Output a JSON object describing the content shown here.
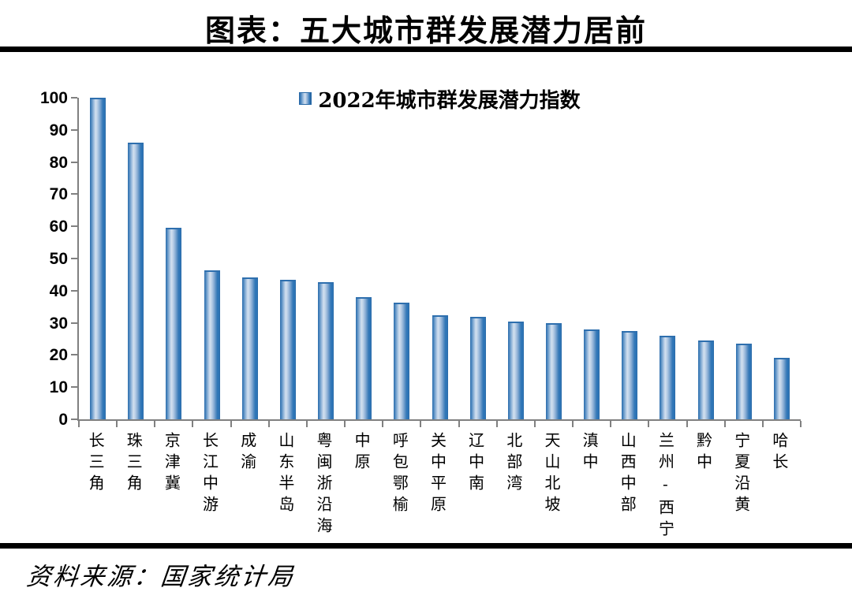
{
  "header": {
    "title": "图表：五大城市群发展潜力居前"
  },
  "footer": {
    "source": "资料来源：国家统计局"
  },
  "chart_data": {
    "type": "bar",
    "title": "图表：五大城市群发展潜力居前",
    "legend": "2022年城市群发展潜力指数",
    "legend_position": "top-center",
    "categories": [
      "长三角",
      "珠三角",
      "京津冀",
      "长江中游",
      "成渝",
      "山东半岛",
      "粤闽浙沿海",
      "中原",
      "呼包鄂榆",
      "关中平原",
      "辽中南",
      "北部湾",
      "天山北坡",
      "滇中",
      "山西中部",
      "兰州-西宁",
      "黔中",
      "宁夏沿黄",
      "哈长"
    ],
    "values": [
      100,
      86,
      59.5,
      46.3,
      44,
      43.5,
      42.6,
      38,
      36.3,
      32.3,
      31.9,
      30.5,
      29.8,
      27.9,
      27.4,
      25.9,
      24.4,
      23.6,
      19
    ],
    "xlabel": "",
    "ylabel": "",
    "ylim": [
      0,
      100
    ],
    "ytick_step": 10,
    "grid": false,
    "bar_color": "#2E75B6",
    "bar_highlight_color": "#D3E0EF",
    "axis_color": "#808080",
    "text_color": "#000000",
    "source": "资料来源：国家统计局"
  }
}
